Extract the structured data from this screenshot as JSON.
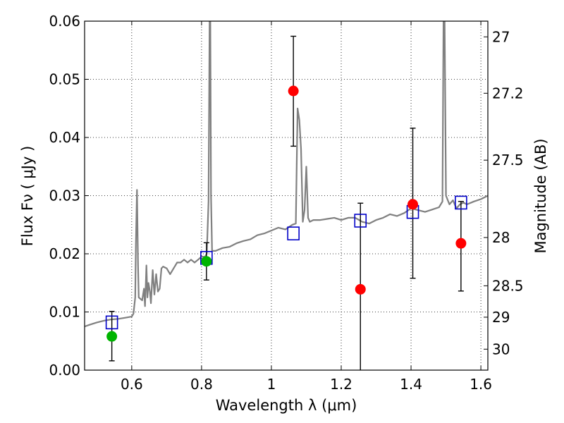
{
  "chart_data": {
    "type": "scatter",
    "xlabel": "Wavelength  λ (μm)",
    "ylabel": "Flux  Fν ( μJy )",
    "ylabel_right": "Magnitude (AB)",
    "xlim": [
      0.465,
      1.62
    ],
    "ylim": [
      0.0,
      0.06
    ],
    "grid": true,
    "x_ticks": [
      0.6,
      0.8,
      1.0,
      1.2,
      1.4,
      1.6
    ],
    "x_tick_labels": [
      "0.6",
      "0.8",
      "1",
      "1.2",
      "1.4",
      "1.6"
    ],
    "y_ticks": [
      0.0,
      0.01,
      0.02,
      0.03,
      0.04,
      0.05,
      0.06
    ],
    "y_tick_labels": [
      "0.00",
      "0.01",
      "0.02",
      "0.03",
      "0.04",
      "0.05",
      "0.06"
    ],
    "right_ticks": [
      {
        "label": "27",
        "flux": 0.0573
      },
      {
        "label": "27.2",
        "flux": 0.0476
      },
      {
        "label": "27.5",
        "flux": 0.0361
      },
      {
        "label": "28",
        "flux": 0.0228
      },
      {
        "label": "28.5",
        "flux": 0.0145
      },
      {
        "label": "29",
        "flux": 0.0091
      },
      {
        "label": "30",
        "flux": 0.0036
      }
    ],
    "colors": {
      "spectrum": "#808080",
      "model_box": "#0000c8",
      "red_points": "#ff0000",
      "green_points": "#00b400",
      "errorbar": "#000000"
    },
    "series": [
      {
        "name": "model spectrum",
        "style": "line",
        "x": [
          0.465,
          0.48,
          0.5,
          0.52,
          0.54,
          0.56,
          0.58,
          0.6,
          0.605,
          0.61,
          0.612,
          0.615,
          0.618,
          0.62,
          0.63,
          0.635,
          0.638,
          0.642,
          0.645,
          0.648,
          0.652,
          0.655,
          0.66,
          0.665,
          0.67,
          0.675,
          0.68,
          0.685,
          0.69,
          0.7,
          0.71,
          0.72,
          0.73,
          0.74,
          0.75,
          0.76,
          0.77,
          0.78,
          0.79,
          0.8,
          0.81,
          0.815,
          0.82,
          0.823,
          0.825,
          0.827,
          0.83,
          0.835,
          0.84,
          0.86,
          0.88,
          0.9,
          0.92,
          0.94,
          0.96,
          0.98,
          1.0,
          1.02,
          1.04,
          1.06,
          1.07,
          1.075,
          1.08,
          1.085,
          1.09,
          1.095,
          1.1,
          1.105,
          1.11,
          1.12,
          1.14,
          1.16,
          1.18,
          1.2,
          1.22,
          1.24,
          1.26,
          1.28,
          1.3,
          1.32,
          1.34,
          1.36,
          1.38,
          1.4,
          1.42,
          1.44,
          1.46,
          1.48,
          1.49,
          1.493,
          1.496,
          1.5,
          1.51,
          1.52,
          1.53,
          1.54,
          1.55,
          1.56,
          1.58,
          1.6,
          1.62
        ],
        "y": [
          0.0075,
          0.0078,
          0.0082,
          0.0085,
          0.0087,
          0.0088,
          0.009,
          0.0092,
          0.0097,
          0.0125,
          0.022,
          0.031,
          0.018,
          0.0125,
          0.012,
          0.014,
          0.011,
          0.018,
          0.0125,
          0.015,
          0.0135,
          0.0115,
          0.0172,
          0.013,
          0.0165,
          0.0135,
          0.014,
          0.0175,
          0.0178,
          0.0175,
          0.0165,
          0.0175,
          0.0185,
          0.0185,
          0.019,
          0.0185,
          0.019,
          0.0185,
          0.019,
          0.0195,
          0.0195,
          0.02,
          0.029,
          0.06,
          0.061,
          0.03,
          0.0205,
          0.0205,
          0.0205,
          0.021,
          0.0212,
          0.0218,
          0.0222,
          0.0225,
          0.0232,
          0.0235,
          0.024,
          0.0245,
          0.0242,
          0.025,
          0.0252,
          0.045,
          0.043,
          0.038,
          0.0255,
          0.0275,
          0.035,
          0.0262,
          0.0255,
          0.0258,
          0.0258,
          0.026,
          0.0262,
          0.0258,
          0.0262,
          0.0262,
          0.0255,
          0.0252,
          0.0258,
          0.0262,
          0.0268,
          0.0265,
          0.027,
          0.0278,
          0.0275,
          0.0272,
          0.0276,
          0.028,
          0.029,
          0.06,
          0.061,
          0.03,
          0.0285,
          0.0292,
          0.0278,
          0.0285,
          0.0288,
          0.0285,
          0.029,
          0.0294,
          0.03
        ]
      },
      {
        "name": "model band flux",
        "style": "square",
        "x": [
          0.543,
          0.814,
          1.063,
          1.255,
          1.405,
          1.543
        ],
        "y": [
          0.0082,
          0.0193,
          0.0235,
          0.0257,
          0.0272,
          0.0288
        ]
      },
      {
        "name": "observed flux (red)",
        "style": "circle",
        "x": [
          1.063,
          1.255,
          1.405,
          1.543
        ],
        "y": [
          0.048,
          0.0139,
          0.0285,
          0.0218
        ],
        "err_low": [
          0.0385,
          -0.005,
          0.0158,
          0.0136
        ],
        "err_high": [
          0.0574,
          0.0287,
          0.0416,
          0.029
        ]
      },
      {
        "name": "observed flux (green)",
        "style": "circle",
        "x": [
          0.543,
          0.814
        ],
        "y": [
          0.0058,
          0.0187
        ],
        "err_low": [
          0.0016,
          0.0155
        ],
        "err_high": [
          0.0101,
          0.0219
        ]
      }
    ]
  }
}
